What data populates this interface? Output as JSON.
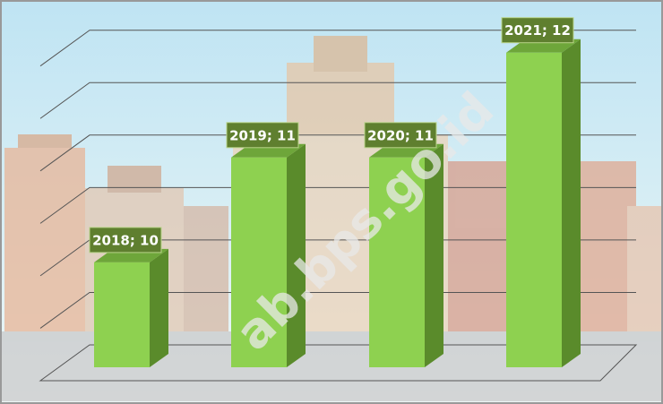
{
  "chart_data": {
    "type": "bar3d",
    "categories": [
      "2018",
      "2019",
      "2020",
      "2021"
    ],
    "values": [
      10,
      11,
      11,
      12
    ],
    "value_labels": [
      "2018; 10",
      "2019; 11",
      "2020; 11",
      "2021; 12"
    ],
    "ylim": [
      9,
      12.1
    ],
    "yticks": [
      9.5,
      10,
      10.5,
      11,
      11.5,
      12
    ],
    "grid": true,
    "color": "#8ed150",
    "watermark": "ab.bps.go.id"
  }
}
